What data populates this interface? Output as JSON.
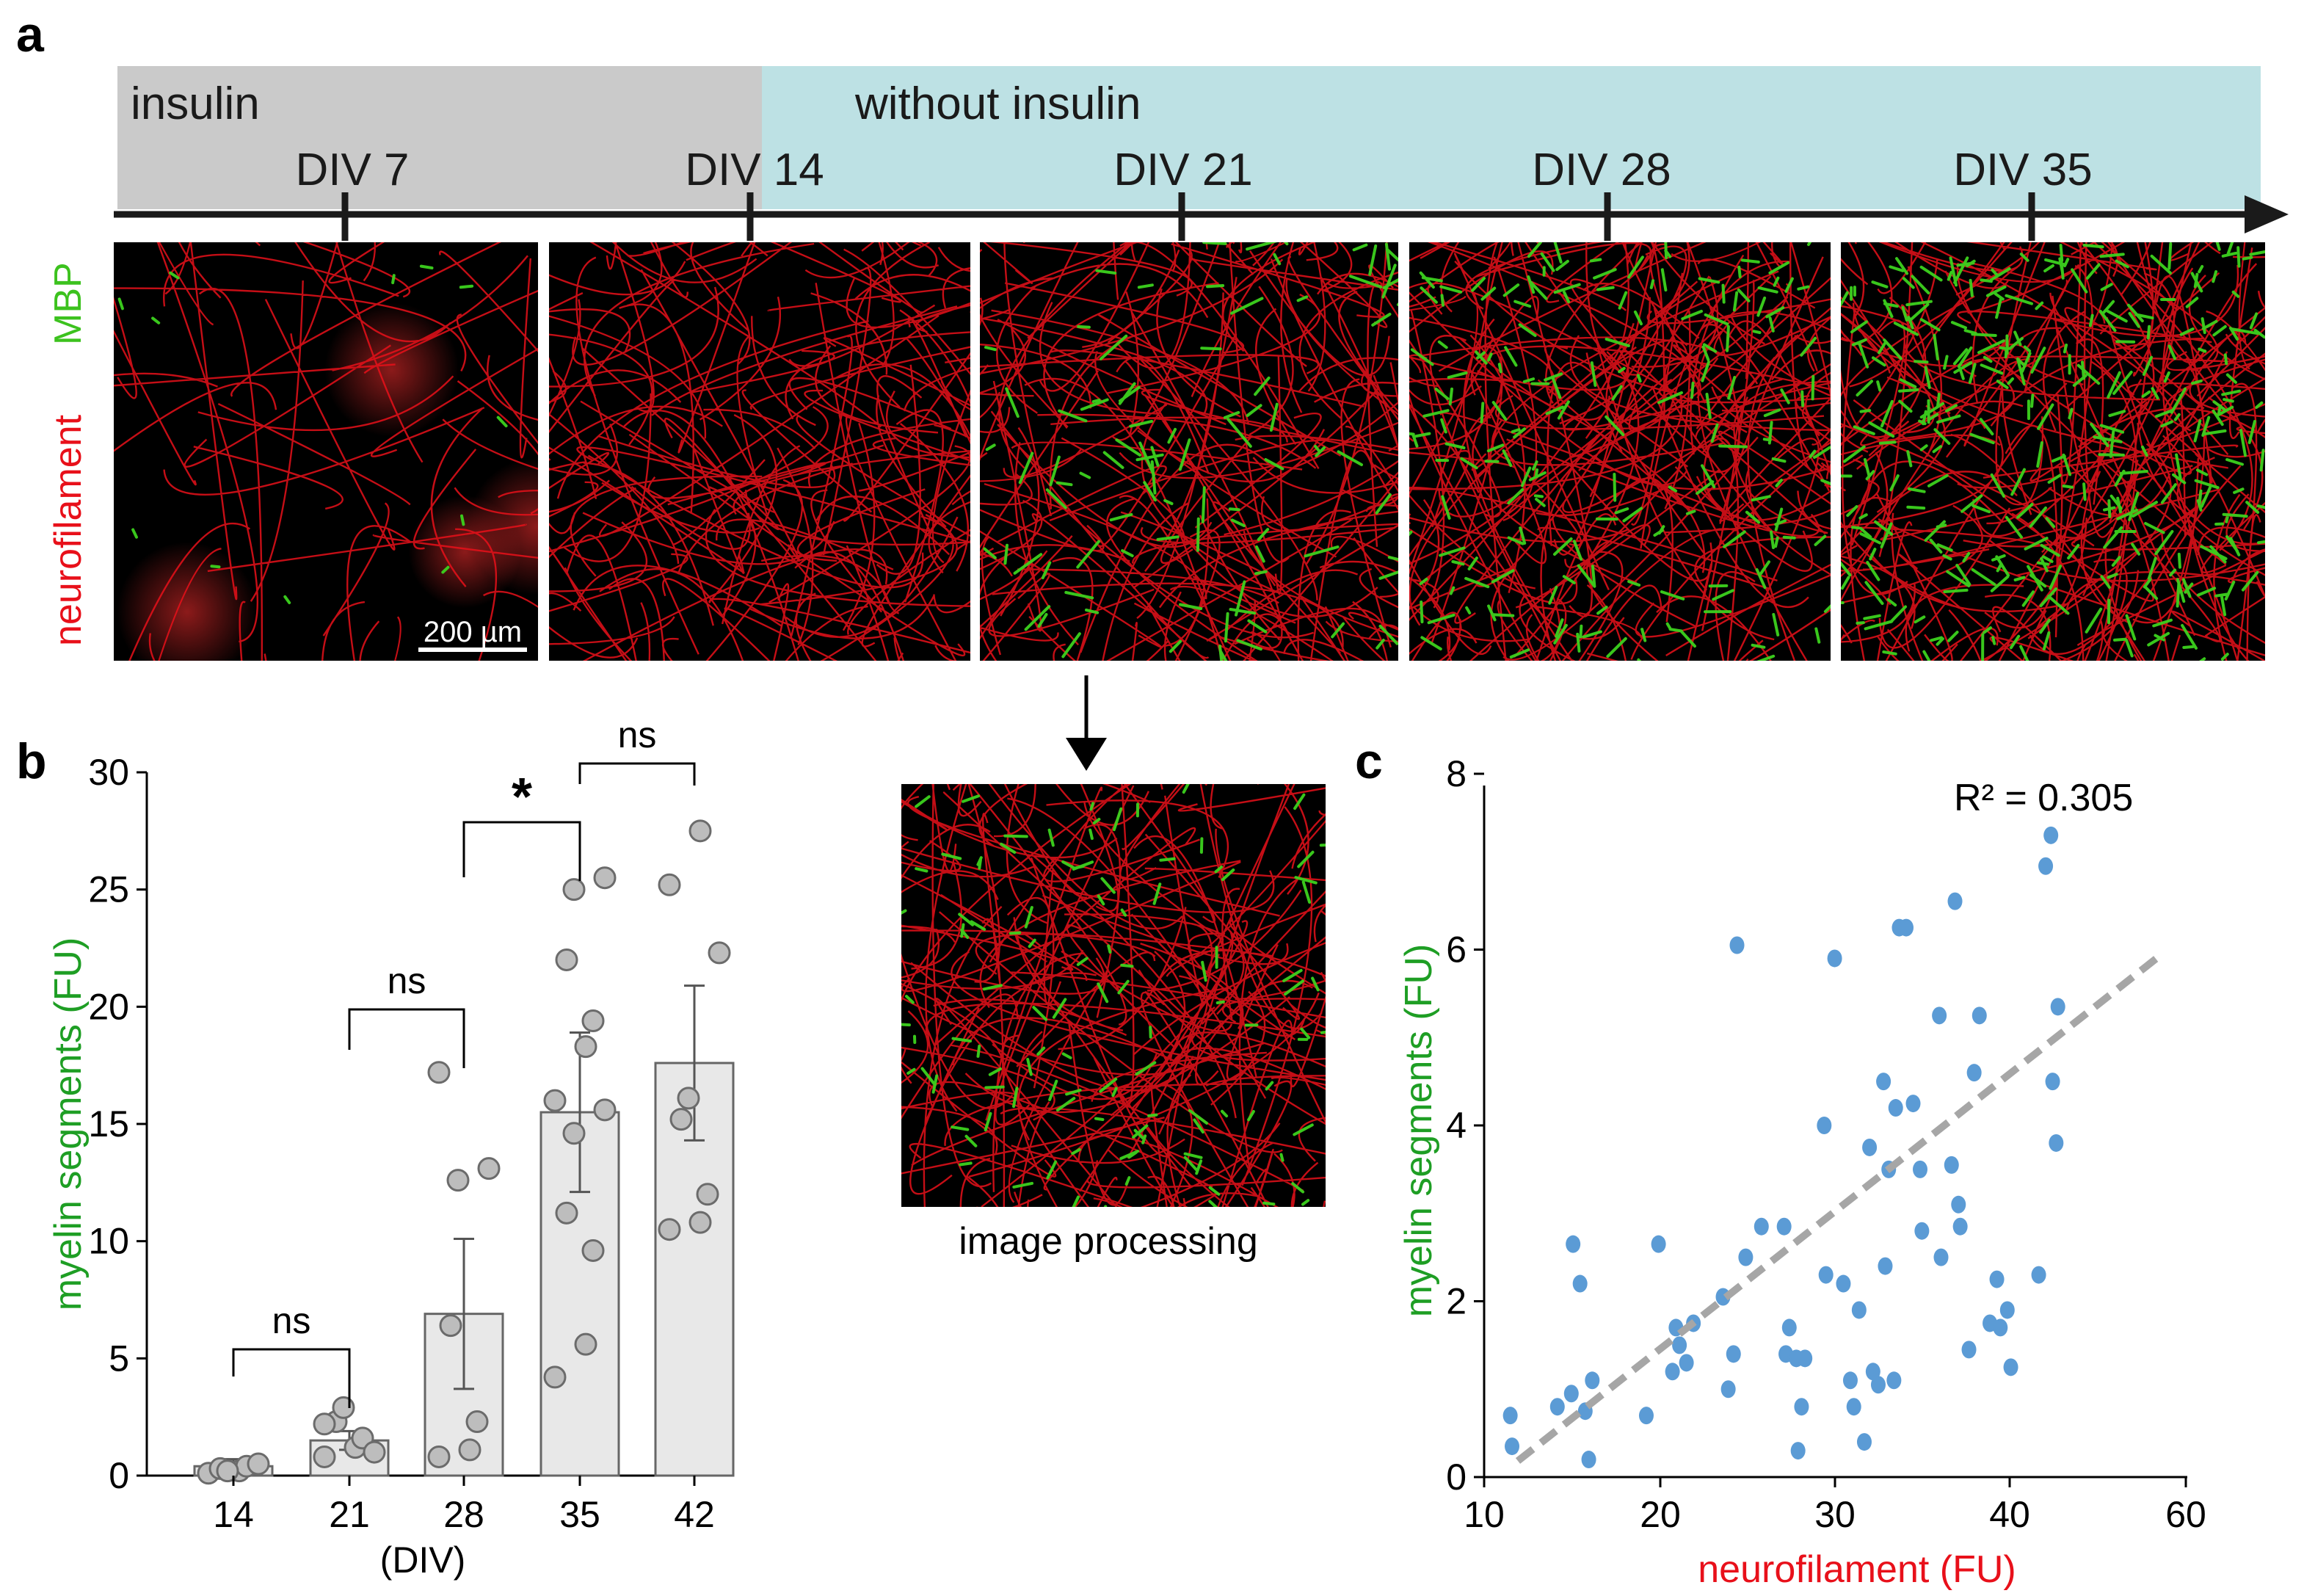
{
  "panels": {
    "a": "a",
    "b": "b",
    "c": "c"
  },
  "timeline": {
    "insulin_label": "insulin",
    "without_label": "without insulin",
    "ticks": [
      "DIV 7",
      "DIV 14",
      "DIV  21",
      "DIV 28",
      "DIV 35"
    ]
  },
  "micro": {
    "stain_red": "neurofilament",
    "stain_green": "MBP",
    "scale_bar": "200 µm",
    "processing_caption": "image processing",
    "red_color": "#e8101a",
    "green_color": "#3cd21e"
  },
  "chart_data": [
    {
      "type": "bar",
      "panel": "b",
      "categories": [
        "14",
        "21",
        "28",
        "35",
        "42"
      ],
      "x_unit": "(DIV)",
      "means": [
        0.4,
        1.5,
        6.9,
        15.5,
        17.6
      ],
      "sem": [
        0.3,
        0.4,
        3.2,
        3.4,
        3.3
      ],
      "points": [
        [
          0.1,
          0.2,
          0.4,
          0.3,
          0.2,
          0.5
        ],
        [
          0.8,
          1.2,
          1.6,
          2.3,
          2.9,
          1.0,
          2.2
        ],
        [
          0.8,
          1.1,
          2.3,
          6.4,
          12.6,
          13.1,
          17.2
        ],
        [
          4.2,
          5.6,
          9.6,
          11.2,
          14.6,
          15.6,
          16.0,
          18.3,
          19.4,
          22.0,
          25.0,
          25.5
        ],
        [
          10.5,
          10.8,
          12.0,
          15.2,
          16.1,
          22.3,
          25.2,
          27.5
        ]
      ],
      "ylabel": "myelin segments (FU)",
      "yticks": [
        "0",
        "5",
        "10",
        "15",
        "20",
        "25",
        "30"
      ],
      "ylim": [
        0,
        30
      ],
      "significance": [
        {
          "from": "14",
          "to": "21",
          "label": "ns"
        },
        {
          "from": "21",
          "to": "28",
          "label": "ns"
        },
        {
          "from": "28",
          "to": "35",
          "label": "*"
        },
        {
          "from": "35",
          "to": "42",
          "label": "ns"
        }
      ],
      "bar_color": "#e8e8e8",
      "point_color": "#bdbdbd"
    },
    {
      "type": "scatter",
      "panel": "c",
      "x": [
        11.5,
        11.6,
        14.2,
        15.0,
        15.1,
        15.5,
        15.8,
        16.0,
        16.2,
        19.3,
        20.0,
        20.8,
        21.0,
        21.2,
        21.6,
        22.0,
        23.7,
        24.0,
        24.3,
        24.5,
        25.0,
        25.9,
        27.2,
        27.3,
        27.5,
        27.9,
        28.0,
        28.2,
        28.4,
        29.5,
        29.6,
        30.1,
        30.6,
        31.0,
        31.2,
        31.5,
        31.8,
        32.1,
        32.3,
        32.6,
        32.9,
        33.0,
        33.2,
        33.5,
        33.6,
        33.8,
        34.2,
        34.6,
        35.0,
        35.1,
        36.1,
        36.2,
        36.8,
        37.0,
        37.2,
        37.3,
        37.8,
        38.1,
        38.4,
        39.0,
        39.4,
        39.6,
        40.0,
        40.2,
        41.8,
        42.2,
        42.5,
        42.6,
        42.8,
        42.9
      ],
      "y": [
        0.7,
        0.35,
        0.8,
        0.95,
        2.65,
        2.2,
        0.75,
        0.2,
        1.1,
        0.7,
        2.65,
        1.2,
        1.7,
        1.5,
        1.3,
        1.75,
        2.05,
        1.0,
        1.4,
        6.05,
        2.5,
        2.85,
        2.85,
        1.4,
        1.7,
        1.35,
        0.3,
        0.8,
        1.35,
        4.0,
        2.3,
        5.9,
        2.2,
        1.1,
        0.8,
        1.9,
        0.4,
        3.75,
        1.2,
        1.05,
        4.5,
        2.4,
        3.5,
        1.1,
        4.2,
        6.25,
        6.25,
        4.25,
        3.5,
        2.8,
        5.25,
        2.5,
        3.55,
        6.55,
        3.1,
        2.85,
        1.45,
        4.6,
        5.25,
        1.75,
        2.25,
        1.7,
        1.9,
        1.25,
        2.3,
        6.95,
        7.3,
        4.5,
        3.8,
        5.35
      ],
      "fit_line": {
        "x": [
          11.5,
          58
        ],
        "y": [
          0.2,
          5.9
        ]
      },
      "annotation": "R² = 0.305",
      "xlabel": "neurofilament (FU)",
      "ylabel": "myelin segments (FU)",
      "xticks": [
        "10",
        "20",
        "30",
        "40",
        "60"
      ],
      "yticks": [
        "0",
        "2",
        "4",
        "6",
        "8"
      ],
      "xlim": [
        10,
        60
      ],
      "ylim": [
        0,
        8
      ],
      "point_color": "#5b9bd5",
      "line_color": "#a6a6a6"
    }
  ]
}
